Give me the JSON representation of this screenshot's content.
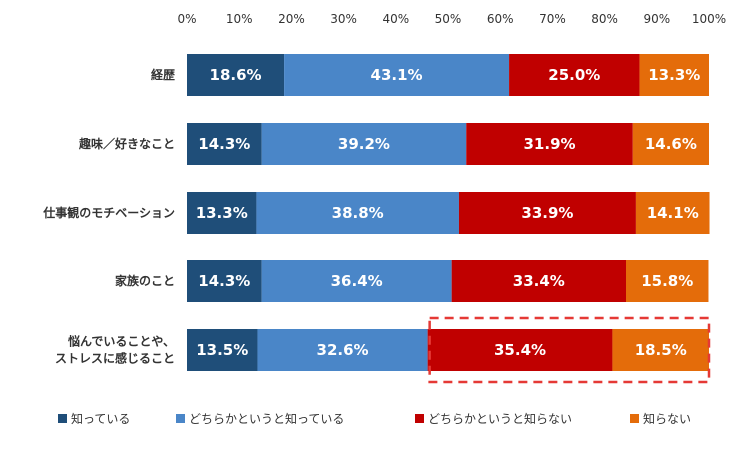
{
  "chart_data": {
    "type": "bar",
    "orientation": "horizontal",
    "stacked": true,
    "title": "",
    "xlabel": "",
    "ylabel": "",
    "xlim": [
      0,
      100
    ],
    "x_ticks": [
      "0%",
      "10%",
      "20%",
      "30%",
      "40%",
      "50%",
      "60%",
      "70%",
      "80%",
      "90%",
      "100%"
    ],
    "categories": [
      [
        "経歴"
      ],
      [
        "趣味／好きなこと"
      ],
      [
        "仕事観のモチベーション"
      ],
      [
        "家族のこと"
      ],
      [
        "悩んでいることや、",
        "ストレスに感じること"
      ]
    ],
    "series": [
      {
        "name": "知っている",
        "color": "#1f4e79",
        "values": [
          18.6,
          14.3,
          13.3,
          14.3,
          13.5
        ]
      },
      {
        "name": "どちらかというと知っている",
        "color": "#4a86c8",
        "values": [
          43.1,
          39.2,
          38.8,
          36.4,
          32.6
        ]
      },
      {
        "name": "どちらかというと知らない",
        "color": "#c00000",
        "values": [
          25.0,
          31.9,
          33.9,
          33.4,
          35.4
        ]
      },
      {
        "name": "知らない",
        "color": "#e46c0a",
        "values": [
          13.3,
          14.6,
          14.1,
          15.8,
          18.5
        ]
      }
    ],
    "legend_position": "bottom",
    "grid": false,
    "highlight": {
      "category_index": 4,
      "series_indices": [
        2,
        3
      ],
      "color": "#e53935",
      "style": "dashed"
    }
  }
}
